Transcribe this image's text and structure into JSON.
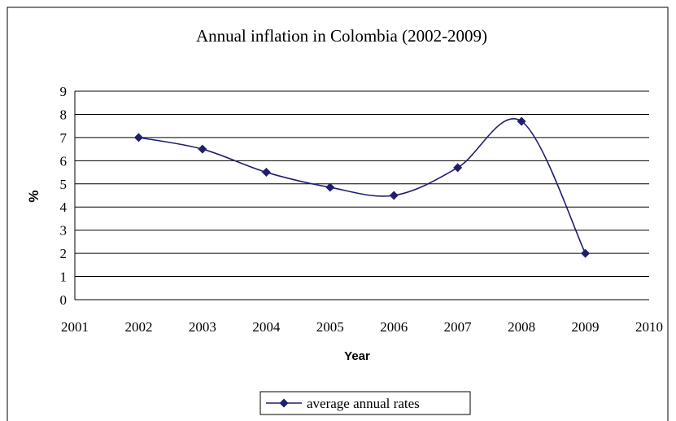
{
  "chart_data": {
    "type": "line",
    "title": "Annual inflation in Colombia (2002-2009)",
    "xlabel": "Year",
    "ylabel": "%",
    "xlim": [
      2001,
      2010
    ],
    "ylim": [
      0,
      9
    ],
    "x_ticks": [
      2001,
      2002,
      2003,
      2004,
      2005,
      2006,
      2007,
      2008,
      2009,
      2010
    ],
    "y_ticks": [
      0,
      1,
      2,
      3,
      4,
      5,
      6,
      7,
      8,
      9
    ],
    "grid": true,
    "legend_position": "bottom",
    "series": [
      {
        "name": "average annual rates",
        "color": "#1f1f6e",
        "marker": "diamond",
        "smooth": true,
        "x": [
          2002,
          2003,
          2004,
          2005,
          2006,
          2007,
          2008,
          2009
        ],
        "y": [
          7.0,
          6.5,
          5.5,
          4.85,
          4.5,
          5.7,
          7.7,
          2.0
        ]
      }
    ]
  }
}
